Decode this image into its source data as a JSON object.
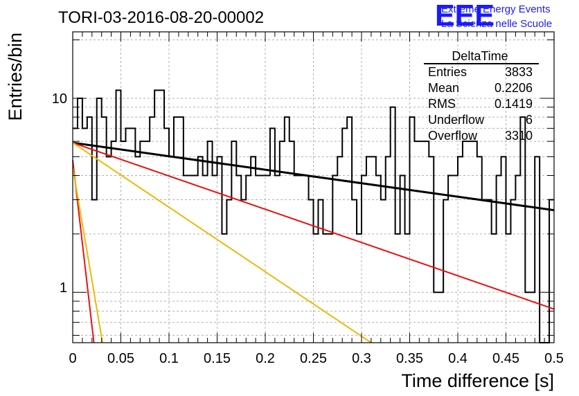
{
  "chart_data": {
    "type": "histogram",
    "title": "TORI-03-2016-08-20-00002",
    "xlabel": "Time difference [s]",
    "ylabel": "Entries/bin",
    "xlim": [
      0,
      0.5
    ],
    "ylim": [
      0.55,
      22
    ],
    "y_scale": "log",
    "grid": true,
    "x_tick_labels": [
      "0",
      "0.05",
      "0.1",
      "0.15",
      "0.2",
      "0.25",
      "0.3",
      "0.35",
      "0.4",
      "0.45",
      "0.5"
    ],
    "y_tick_labels": [
      "1",
      "10"
    ],
    "bin_width": 0.005,
    "bin_counts": [
      7,
      10,
      7,
      8,
      3,
      10,
      8,
      5,
      6,
      11,
      6,
      7,
      7,
      5,
      6,
      6,
      8,
      11,
      11,
      7,
      5,
      8,
      8,
      4,
      4,
      4,
      5,
      4,
      6,
      4,
      5,
      2,
      3,
      6,
      4,
      3,
      4,
      5,
      4,
      4,
      4,
      7,
      4,
      6,
      8,
      6,
      4,
      4,
      4,
      3,
      2,
      3,
      2,
      2,
      4,
      5,
      7,
      8,
      3,
      2,
      4,
      5,
      5,
      4,
      3,
      5,
      9,
      2,
      4,
      2,
      8,
      6,
      6,
      6,
      5,
      1,
      1,
      3,
      4,
      4,
      5,
      6,
      6,
      6,
      5,
      3,
      3,
      2,
      4,
      5,
      2,
      3,
      4,
      8,
      1,
      1,
      5,
      0,
      0,
      3
    ],
    "fits": [
      {
        "color": "#000000",
        "points": [
          [
            0,
            5.9
          ],
          [
            0.5,
            2.65
          ]
        ]
      },
      {
        "color": "#e81010",
        "points": [
          [
            0,
            5.9
          ],
          [
            0.5,
            0.82
          ]
        ]
      },
      {
        "color": "#f0b800",
        "points": [
          [
            0,
            5.9
          ],
          [
            0.31,
            0.55
          ]
        ]
      },
      {
        "color": "#e81010",
        "points": [
          [
            0,
            4.8
          ],
          [
            0.022,
            0.55
          ]
        ]
      },
      {
        "color": "#f0b800",
        "points": [
          [
            0,
            4.4
          ],
          [
            0.031,
            0.55
          ]
        ]
      }
    ],
    "stats": {
      "title": "DeltaTime",
      "rows": [
        {
          "label": "Entries",
          "value": "3833"
        },
        {
          "label": "Mean",
          "value": "0.2206"
        },
        {
          "label": "RMS",
          "value": "0.1419"
        },
        {
          "label": "Underflow",
          "value": "6"
        },
        {
          "label": "Overflow",
          "value": "3310"
        }
      ]
    }
  },
  "logo": {
    "mark": "EEE",
    "line1": "Extreme Energy Events",
    "line2": "La Scienza nelle Scuole",
    "color": "#1a1aff"
  }
}
